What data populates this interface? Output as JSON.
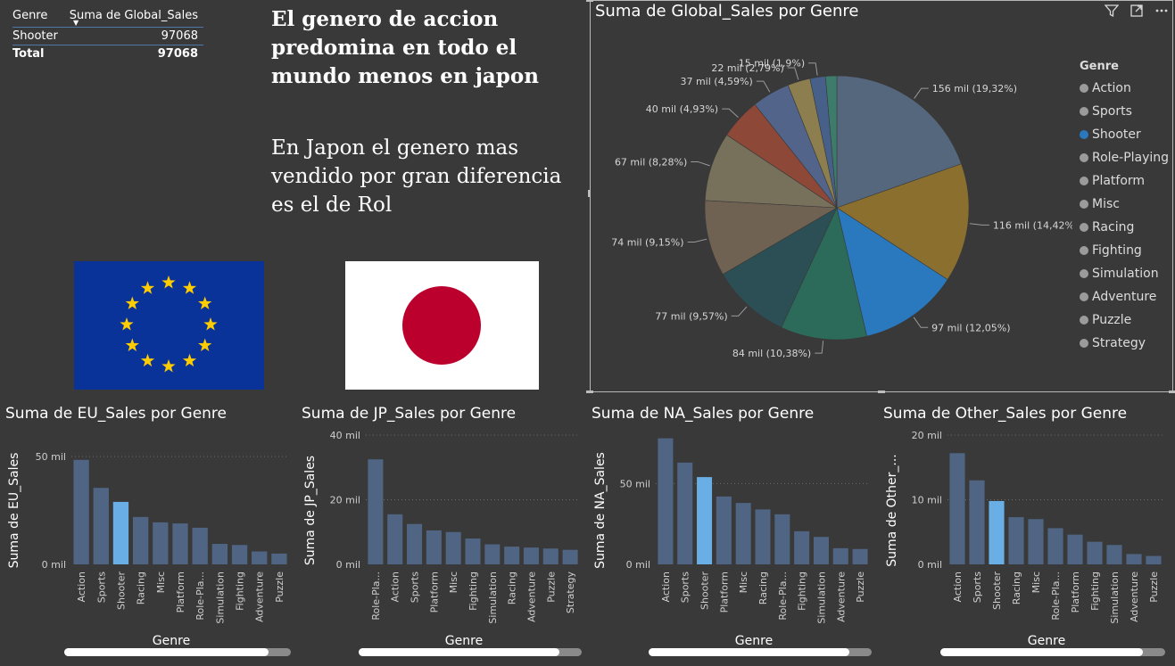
{
  "table": {
    "headers": [
      "Genre",
      "Suma de Global_Sales"
    ],
    "rows": [
      {
        "genre": "Shooter",
        "value": "97068"
      }
    ],
    "total": {
      "label": "Total",
      "value": "97068"
    }
  },
  "text_block_1": "El genero de accion predomina en todo el mundo menos en japon",
  "text_block_2": "En Japon el genero mas vendido por gran diferencia es el de Rol",
  "flags": [
    "eu-flag",
    "japan-flag"
  ],
  "pie": {
    "title": "Suma de Global_Sales por Genre",
    "legend_title": "Genre",
    "legend": [
      "Action",
      "Sports",
      "Shooter",
      "Role-Playing",
      "Platform",
      "Misc",
      "Racing",
      "Fighting",
      "Simulation",
      "Adventure",
      "Puzzle",
      "Strategy"
    ],
    "selected": "Shooter",
    "icons": [
      "filter-icon",
      "focus-mode-icon",
      "more-options-icon"
    ]
  },
  "chart_data": [
    {
      "type": "pie",
      "title": "Suma de Global_Sales por Genre",
      "legend_placement": "right",
      "categories": [
        "Action",
        "Sports",
        "Shooter",
        "Role-Playing",
        "Platform",
        "Misc",
        "Racing",
        "Fighting",
        "Simulation",
        "Adventure",
        "Puzzle",
        "Strategy"
      ],
      "values": [
        156,
        116,
        97,
        84,
        77,
        74,
        67,
        40,
        37,
        22,
        15,
        11
      ],
      "labels": [
        "156 mil (19,32%)",
        "116 mil (14,42%)",
        "97 mil (12,05%)",
        "84 mil (10,38%)",
        "77 mil (9,57%)",
        "74 mil (9,15%)",
        "67 mil (8,28%)",
        "40 mil (4,93%)",
        "37 mil (4,59%)",
        "22 mil (2,79%)",
        "15 mil (1,9%)",
        ""
      ],
      "colors": [
        "#55677d",
        "#8b6f2e",
        "#2a79bf",
        "#2c6b5a",
        "#2b4f54",
        "#6f6252",
        "#77705b",
        "#8d4837",
        "#52648a",
        "#8c7e4e",
        "#47608a",
        "#3d7b6b"
      ]
    },
    {
      "type": "bar",
      "title": "Suma de EU_Sales por Genre",
      "xlabel": "Genre",
      "ylabel": "Suma de EU_Sales",
      "ylim": [
        0,
        60
      ],
      "yticks": [
        0,
        50
      ],
      "ytick_labels": [
        "0 mil",
        "50 mil"
      ],
      "categories": [
        "Action",
        "Sports",
        "Shooter",
        "Racing",
        "Misc",
        "Platform",
        "Role-Pla...",
        "Simulation",
        "Fighting",
        "Adventure",
        "Puzzle"
      ],
      "values": [
        48.5,
        35.5,
        29,
        22,
        19.5,
        19,
        17,
        9.5,
        9,
        6,
        5
      ],
      "highlight": "Shooter"
    },
    {
      "type": "bar",
      "title": "Suma de JP_Sales por Genre",
      "xlabel": "Genre",
      "ylabel": "Suma de JP_Sales",
      "ylim": [
        0,
        40
      ],
      "yticks": [
        0,
        20,
        40
      ],
      "ytick_labels": [
        "0 mil",
        "20 mil",
        "40 mil"
      ],
      "categories": [
        "Role-Pla...",
        "Action",
        "Sports",
        "Platform",
        "Misc",
        "Fighting",
        "Simulation",
        "Racing",
        "Adventure",
        "Puzzle",
        "Strategy"
      ],
      "values": [
        32.5,
        15.5,
        12.5,
        10.5,
        10,
        8,
        6.2,
        5.5,
        5.2,
        4.9,
        4.5
      ],
      "highlight": ""
    },
    {
      "type": "bar",
      "title": "Suma de NA_Sales por Genre",
      "xlabel": "Genre",
      "ylabel": "Suma de NA_Sales",
      "ylim": [
        0,
        80
      ],
      "yticks": [
        0,
        50
      ],
      "ytick_labels": [
        "0 mil",
        "50 mil"
      ],
      "categories": [
        "Action",
        "Sports",
        "Shooter",
        "Platform",
        "Misc",
        "Racing",
        "Role-Pla...",
        "Fighting",
        "Simulation",
        "Adventure",
        "Puzzle"
      ],
      "values": [
        78,
        63,
        54,
        42,
        38,
        34,
        31,
        20.5,
        17,
        10,
        9.5
      ],
      "highlight": "Shooter"
    },
    {
      "type": "bar",
      "title": "Suma de Other_Sales por Genre",
      "xlabel": "Genre",
      "ylabel": "Suma de Other_...",
      "ylim": [
        0,
        20
      ],
      "yticks": [
        0,
        10,
        20
      ],
      "ytick_labels": [
        "0 mil",
        "10 mil",
        "20 mil"
      ],
      "categories": [
        "Action",
        "Sports",
        "Shooter",
        "Racing",
        "Misc",
        "Role-Pla...",
        "Platform",
        "Fighting",
        "Simulation",
        "Adventure",
        "Puzzle"
      ],
      "values": [
        17.2,
        13,
        9.8,
        7.3,
        7,
        5.6,
        4.6,
        3.5,
        3,
        1.6,
        1.3
      ],
      "highlight": "Shooter"
    }
  ]
}
